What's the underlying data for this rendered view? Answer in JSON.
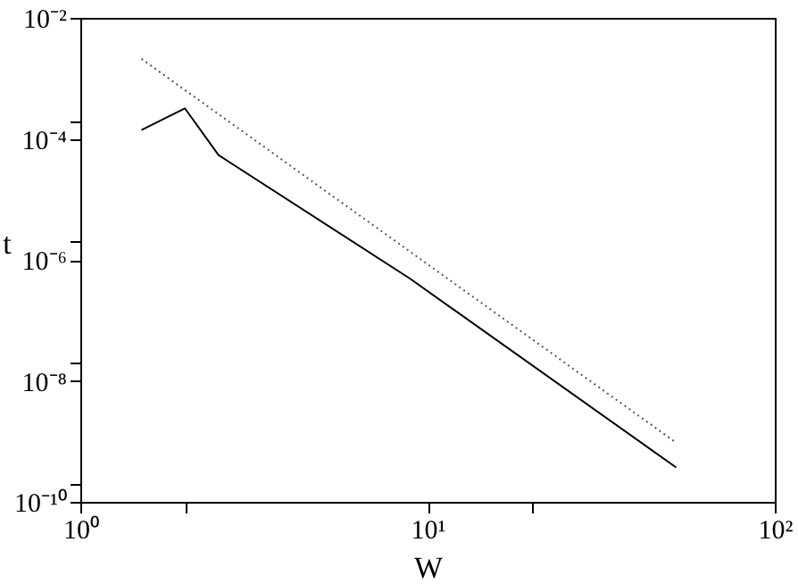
{
  "chart_data": {
    "type": "line",
    "xlabel": "W",
    "ylabel": "t",
    "log": "xy",
    "grid": false,
    "xlim": [
      1,
      100
    ],
    "ylim": [
      1e-10,
      0.01
    ],
    "xticks": [
      {
        "value": 1,
        "label": "10⁰"
      },
      {
        "value": 2,
        "label": null
      },
      {
        "value": 10,
        "label": "10¹"
      },
      {
        "value": 20,
        "label": null
      },
      {
        "value": 100,
        "label": "10²"
      }
    ],
    "yticks": [
      {
        "value": 1e-10,
        "label": "10⁻¹⁰"
      },
      {
        "value": 2e-10,
        "label": null
      },
      {
        "value": 1e-08,
        "label": "10⁻⁸"
      },
      {
        "value": 2e-08,
        "label": null
      },
      {
        "value": 1e-06,
        "label": "10⁻⁶"
      },
      {
        "value": 2e-06,
        "label": null
      },
      {
        "value": 0.0001,
        "label": "10⁻⁴"
      },
      {
        "value": 0.0002,
        "label": null
      },
      {
        "value": 0.01,
        "label": "10⁻²"
      }
    ],
    "series": [
      {
        "color": "#000000",
        "line_style": "solid",
        "x": [
          1.5,
          2.0,
          2.5,
          8.9,
          52
        ],
        "values": [
          0.00014,
          0.00032,
          5.4e-05,
          4.9e-07,
          3.7e-10
        ]
      },
      {
        "color": "#555555",
        "line_style": "dotted",
        "x": [
          1.5,
          52
        ],
        "values": [
          0.0021,
          9.5e-10
        ]
      }
    ]
  }
}
